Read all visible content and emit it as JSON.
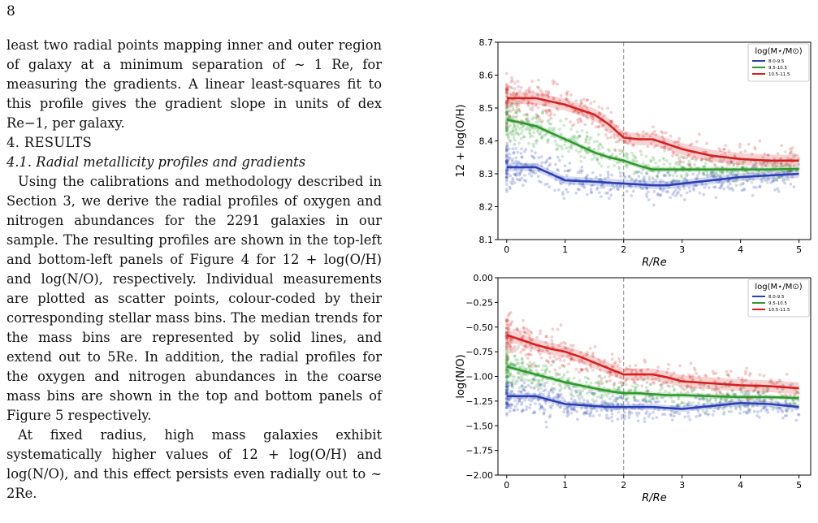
{
  "page_number": "8",
  "para_intro": "least two radial points mapping inner and outer region of galaxy at a minimum separation of ∼ 1 Re, for measuring the gradients. A linear least-squares fit to this profile gives the gradient slope in units of dex Re−1, per galaxy.",
  "section_title": "4. RESULTS",
  "subsection_title": "4.1. Radial metallicity profiles and gradients",
  "para_results_1": "Using the calibrations and methodology described in Section 3, we derive the radial profiles of oxygen and nitrogen abundances for the 2291 galaxies in our sample. The resulting profiles are shown in the top-left and bottom-left panels of Figure 4 for 12 + log(O/H) and log(N/O), respectively. Individual measurements are plotted as scatter points, colour-coded by their corresponding stellar mass bins. The median trends for the mass bins are represented by solid lines, and extend out to 5Re. In addition, the radial profiles for the oxygen and nitrogen abundances in the coarse mass bins are shown in the top and bottom panels of Figure 5 respectively.",
  "para_results_2": "At fixed radius, high mass galaxies exhibit systematically higher values of 12 + log(O/H) and log(N/O), and this effect persists even radially out to ∼ 2Re.",
  "colors": {
    "low": "#2b3fb5",
    "mid": "#2d9a2d",
    "high": "#d62020"
  },
  "chart_data": [
    {
      "type": "line",
      "panel": "top",
      "xlabel": "R/Re",
      "ylabel": "12 + log(O/H)",
      "xlim": [
        -0.15,
        5.2
      ],
      "ylim": [
        8.1,
        8.7
      ],
      "xticks": [
        "0",
        "1",
        "2",
        "3",
        "4",
        "5"
      ],
      "yticks": [
        "8.1",
        "8.2",
        "8.3",
        "8.4",
        "8.5",
        "8.6",
        "8.7"
      ],
      "vline_x": 2,
      "legend_title": "log(M⋆/M⊙)",
      "legend_position": "top-right",
      "x": [
        0,
        0.25,
        0.5,
        0.75,
        1.0,
        1.25,
        1.5,
        1.75,
        2.0,
        2.25,
        2.5,
        2.75,
        3.0,
        3.5,
        4.0,
        4.5,
        5.0
      ],
      "series": [
        {
          "name": "8.0-9.5",
          "values": [
            8.32,
            8.32,
            8.32,
            8.3,
            8.28,
            8.278,
            8.276,
            8.273,
            8.27,
            8.268,
            8.265,
            8.265,
            8.27,
            8.28,
            8.29,
            8.295,
            8.3
          ],
          "band": 0.012
        },
        {
          "name": "9.5-10.5",
          "values": [
            8.465,
            8.455,
            8.445,
            8.425,
            8.405,
            8.385,
            8.365,
            8.35,
            8.34,
            8.325,
            8.313,
            8.313,
            8.313,
            8.313,
            8.313,
            8.313,
            8.315
          ],
          "band": 0.008
        },
        {
          "name": "10.5-11.5",
          "values": [
            8.53,
            8.53,
            8.53,
            8.52,
            8.51,
            8.495,
            8.48,
            8.45,
            8.41,
            8.405,
            8.405,
            8.39,
            8.375,
            8.355,
            8.345,
            8.34,
            8.34
          ],
          "band": 0.018
        }
      ]
    },
    {
      "type": "line",
      "panel": "bottom",
      "xlabel": "R/Re",
      "ylabel": "log(N/O)",
      "xlim": [
        -0.15,
        5.2
      ],
      "ylim": [
        -2.0,
        0.0
      ],
      "xticks": [
        "0",
        "1",
        "2",
        "3",
        "4",
        "5"
      ],
      "yticks": [
        "−2.00",
        "−1.75",
        "−1.50",
        "−1.25",
        "−1.00",
        "−0.75",
        "−0.50",
        "−0.25",
        "0.00"
      ],
      "vline_x": 2,
      "legend_title": "log(M⋆/M⊙)",
      "legend_position": "top-right",
      "x": [
        0,
        0.25,
        0.5,
        0.75,
        1.0,
        1.25,
        1.5,
        1.75,
        2.0,
        2.25,
        2.5,
        2.75,
        3.0,
        3.5,
        4.0,
        4.5,
        5.0
      ],
      "series": [
        {
          "name": "8.0-9.5",
          "values": [
            -1.2,
            -1.2,
            -1.2,
            -1.24,
            -1.28,
            -1.29,
            -1.3,
            -1.31,
            -1.31,
            -1.31,
            -1.31,
            -1.32,
            -1.33,
            -1.3,
            -1.27,
            -1.28,
            -1.31
          ],
          "band": 0.03
        },
        {
          "name": "9.5-10.5",
          "values": [
            -0.9,
            -0.94,
            -0.98,
            -1.02,
            -1.06,
            -1.09,
            -1.12,
            -1.15,
            -1.17,
            -1.17,
            -1.18,
            -1.19,
            -1.19,
            -1.2,
            -1.21,
            -1.21,
            -1.22
          ],
          "band": 0.025
        },
        {
          "name": "10.5-11.5",
          "values": [
            -0.58,
            -0.63,
            -0.68,
            -0.72,
            -0.75,
            -0.8,
            -0.86,
            -0.92,
            -0.98,
            -0.98,
            -0.98,
            -1.01,
            -1.05,
            -1.07,
            -1.09,
            -1.1,
            -1.12
          ],
          "band": 0.06
        }
      ]
    }
  ]
}
